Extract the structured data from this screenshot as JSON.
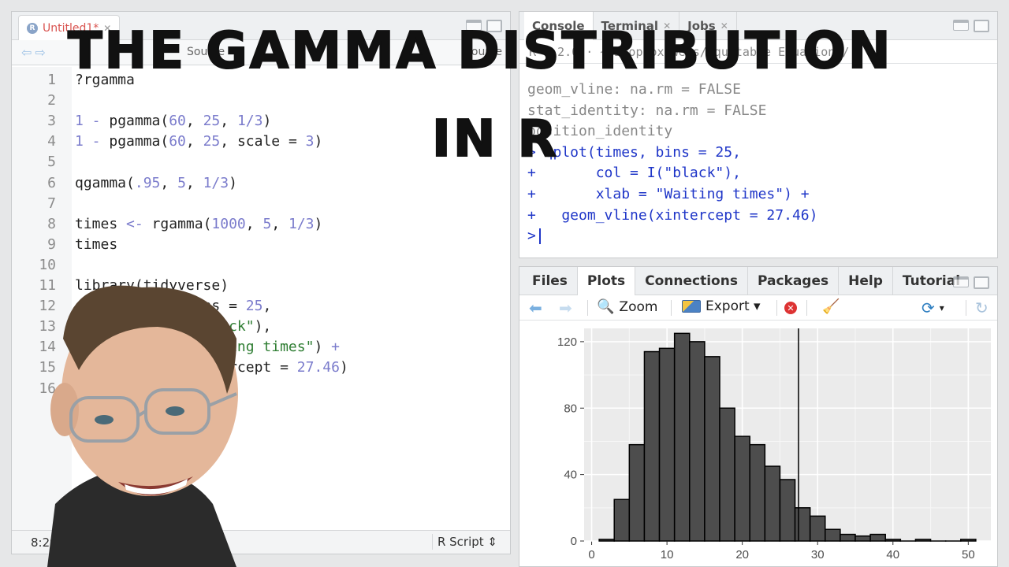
{
  "title": {
    "line1": "THE GAMMA DISTRIBUTION",
    "line2": "IN R"
  },
  "source": {
    "tab_label": "Untitled1*",
    "toolbar": {
      "btn1": "Source",
      "btn2": "Source"
    },
    "lines": [
      {
        "n": "1",
        "parts": [
          [
            "plain",
            "?rgamma"
          ]
        ]
      },
      {
        "n": "2",
        "parts": []
      },
      {
        "n": "3",
        "parts": [
          [
            "num",
            "1 - "
          ],
          [
            "plain",
            "pgamma("
          ],
          [
            "num",
            "60"
          ],
          [
            "plain",
            ", "
          ],
          [
            "num",
            "25"
          ],
          [
            "plain",
            ", "
          ],
          [
            "num",
            "1/3"
          ],
          [
            "plain",
            ")"
          ]
        ]
      },
      {
        "n": "4",
        "parts": [
          [
            "num",
            "1 - "
          ],
          [
            "plain",
            "pgamma("
          ],
          [
            "num",
            "60"
          ],
          [
            "plain",
            ", "
          ],
          [
            "num",
            "25"
          ],
          [
            "plain",
            ", scale = "
          ],
          [
            "num",
            "3"
          ],
          [
            "plain",
            ")"
          ]
        ]
      },
      {
        "n": "5",
        "parts": []
      },
      {
        "n": "6",
        "parts": [
          [
            "plain",
            "qgamma("
          ],
          [
            "num",
            ".95"
          ],
          [
            "plain",
            ", "
          ],
          [
            "num",
            "5"
          ],
          [
            "plain",
            ", "
          ],
          [
            "num",
            "1/3"
          ],
          [
            "plain",
            ")"
          ]
        ]
      },
      {
        "n": "7",
        "parts": []
      },
      {
        "n": "8",
        "parts": [
          [
            "plain",
            "times "
          ],
          [
            "op",
            "<-"
          ],
          [
            "plain",
            " rgamma("
          ],
          [
            "num",
            "1000"
          ],
          [
            "plain",
            ", "
          ],
          [
            "num",
            "5"
          ],
          [
            "plain",
            ", "
          ],
          [
            "num",
            "1/3"
          ],
          [
            "plain",
            ")"
          ]
        ]
      },
      {
        "n": "9",
        "parts": [
          [
            "plain",
            "times"
          ]
        ]
      },
      {
        "n": "10",
        "parts": []
      },
      {
        "n": "11",
        "parts": [
          [
            "plain",
            "library(tidyverse)"
          ]
        ]
      },
      {
        "n": "12",
        "parts": [
          [
            "plain",
            "qplot(times, bins = "
          ],
          [
            "num",
            "25"
          ],
          [
            "plain",
            ","
          ]
        ]
      },
      {
        "n": "13",
        "parts": [
          [
            "plain",
            "      col = I("
          ],
          [
            "str",
            "\"black\""
          ],
          [
            "plain",
            "),"
          ]
        ]
      },
      {
        "n": "14",
        "parts": [
          [
            "plain",
            "      xlab = "
          ],
          [
            "str",
            "\"Waiting times\""
          ],
          [
            "plain",
            ") "
          ],
          [
            "op",
            "+"
          ]
        ]
      },
      {
        "n": "15",
        "parts": [
          [
            "plain",
            "  geom_vline(xintercept = "
          ],
          [
            "num",
            "27.46"
          ],
          [
            "plain",
            ")"
          ]
        ]
      },
      {
        "n": "16",
        "parts": []
      }
    ],
    "status": {
      "cursor": "8:29",
      "type": "R Script ⇕"
    }
  },
  "console": {
    "tabs": [
      "Console",
      "Terminal",
      "Jobs"
    ],
    "toolbar_path": "R 4.2.0 · ~/Dropbox/Webs/Equitable Equations/",
    "lines": [
      {
        "kind": "out",
        "text": "geom_vline: na.rm = FALSE"
      },
      {
        "kind": "out",
        "text": "stat_identity: na.rm = FALSE"
      },
      {
        "kind": "out",
        "text": "position_identity"
      },
      {
        "kind": "in",
        "text": "> qplot(times, bins = 25,"
      },
      {
        "kind": "in",
        "text": "+       col = I(\"black\"),"
      },
      {
        "kind": "in",
        "text": "+       xlab = \"Waiting times\") +"
      },
      {
        "kind": "in",
        "text": "+   geom_vline(xintercept = 27.46)"
      },
      {
        "kind": "prompt",
        "text": ">"
      }
    ]
  },
  "plots": {
    "tabs": [
      "Files",
      "Plots",
      "Connections",
      "Packages",
      "Help",
      "Tutorial"
    ],
    "toolbar": {
      "zoom": "Zoom",
      "export": "Export ▾"
    }
  },
  "colors": {
    "bar_fill": "#4d4d4d",
    "panel_bg": "#ebebeb",
    "console_input": "#1f36c8"
  },
  "chart_data": {
    "type": "bar",
    "xlabel": "",
    "ylabel": "",
    "xlim": [
      -1,
      53
    ],
    "ylim": [
      0,
      128
    ],
    "x_ticks": [
      "0",
      "10",
      "20",
      "30",
      "40",
      "50"
    ],
    "y_ticks": [
      "0",
      "40",
      "80",
      "120"
    ],
    "bin_edges": [
      1.0,
      3.0,
      5.0,
      7.0,
      9.0,
      11.0,
      13.0,
      15.0,
      17.0,
      19.0,
      21.0,
      23.0,
      25.0,
      27.0,
      29.0,
      31.0,
      33.0,
      35.0,
      37.0,
      39.0,
      41.0,
      43.0,
      45.0,
      47.0,
      49.0,
      51.0
    ],
    "values": [
      1,
      25,
      58,
      114,
      116,
      125,
      120,
      111,
      80,
      63,
      58,
      45,
      37,
      20,
      15,
      7,
      4,
      3,
      4,
      1,
      0,
      1,
      0,
      0,
      1
    ],
    "vline": 27.46
  }
}
